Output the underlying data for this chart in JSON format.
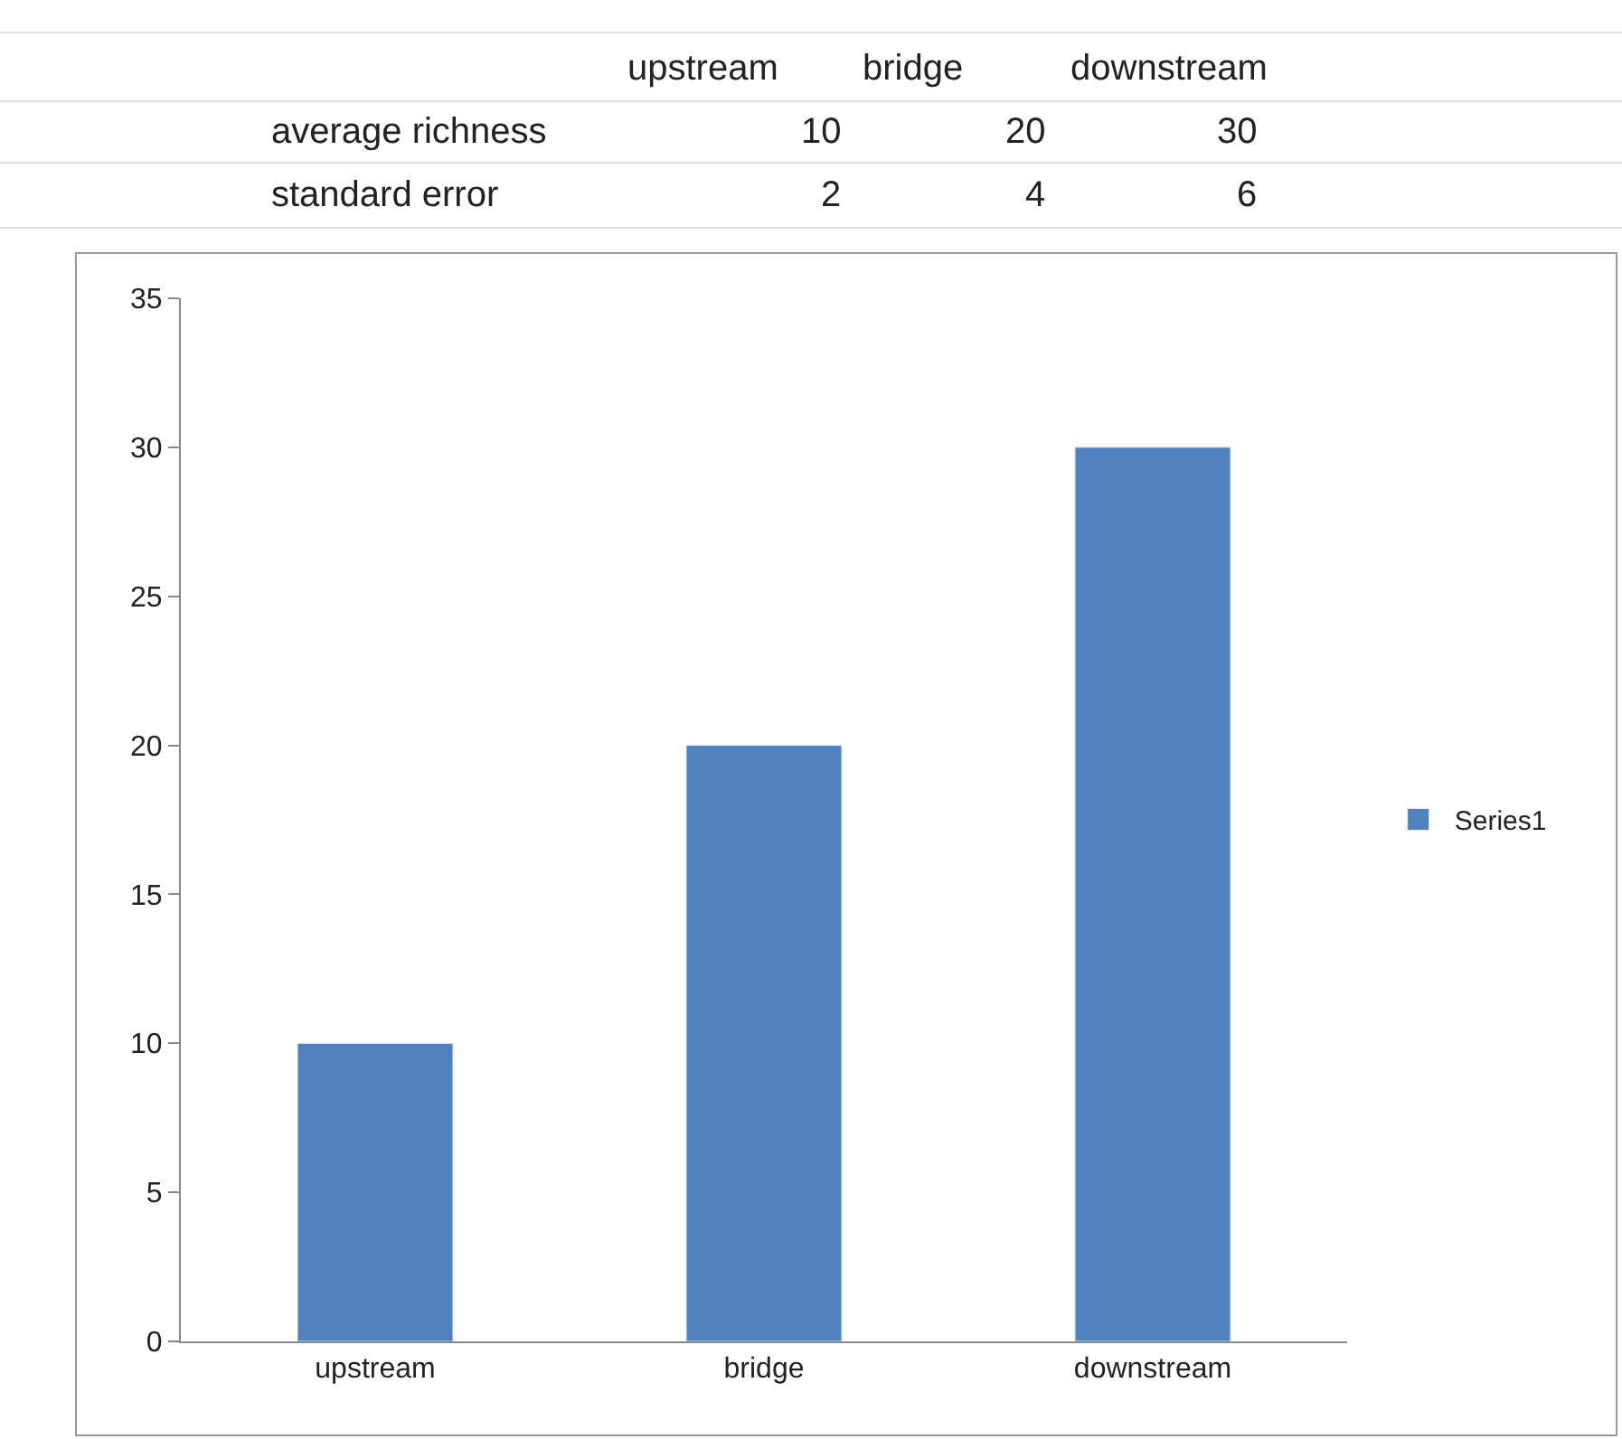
{
  "chart_data": {
    "type": "bar",
    "categories": [
      "upstream",
      "bridge",
      "downstream"
    ],
    "series": [
      {
        "name": "Series1",
        "color": "#4f81bd",
        "values": [
          10,
          20,
          30
        ]
      }
    ],
    "annotations": [
      "average richness",
      "10",
      "20",
      "30",
      "standard error",
      "2",
      "4",
      "6"
    ],
    "ylim": [
      0,
      35
    ],
    "yticks": [
      0,
      5,
      10,
      15,
      20,
      25,
      30,
      35
    ],
    "grid": false,
    "legend": "right"
  }
}
